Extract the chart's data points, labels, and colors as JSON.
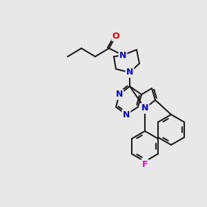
{
  "background_color": "#e8e8e8",
  "bond_color": "#1a1a1a",
  "nitrogen_color": "#0000ee",
  "oxygen_color": "#ee0000",
  "fluorine_color": "#ee00ee",
  "figsize": [
    3.0,
    3.0
  ],
  "dpi": 100,
  "lw": 1.5,
  "font_size": 9,
  "atoms": {
    "O": {
      "color": "#ee0000"
    },
    "N": {
      "color": "#0000ee"
    },
    "F": {
      "color": "#ee00ee"
    }
  }
}
